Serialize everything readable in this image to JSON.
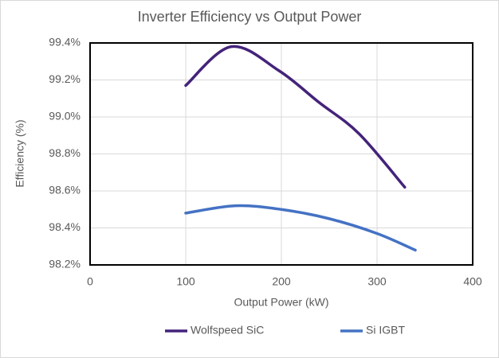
{
  "chart_data": {
    "type": "line",
    "title": "Inverter Efficiency vs Output Power",
    "x_label": "Output Power (kW)",
    "y_label": "Efficiency (%)",
    "series": [
      {
        "name": "Wolfspeed SiC",
        "color": "#44237a",
        "x": [
          100,
          147.5,
          197.5,
          239,
          281,
          329
        ],
        "values": [
          99.17,
          99.38,
          99.25,
          99.08,
          98.91,
          98.62
        ]
      },
      {
        "name": "Si IGBT",
        "color": "#4472c4",
        "x": [
          100,
          152,
          200,
          250,
          300,
          340
        ],
        "values": [
          98.48,
          98.52,
          98.5,
          98.45,
          98.37,
          98.28
        ]
      }
    ],
    "xlim": [
      0,
      400
    ],
    "xticks": [
      0,
      100,
      200,
      300,
      400
    ],
    "ylim": [
      98.2,
      99.4
    ],
    "yticks": [
      {
        "value": 98.2,
        "label": "98.2%"
      },
      {
        "value": 98.4,
        "label": "98.4%"
      },
      {
        "value": 98.6,
        "label": "98.6%"
      },
      {
        "value": 98.8,
        "label": "98.8%"
      },
      {
        "value": 99.0,
        "label": "99.0%"
      },
      {
        "value": 99.2,
        "label": "99.2%"
      },
      {
        "value": 99.4,
        "label": "99.4%"
      }
    ],
    "grid": true,
    "legend": "bottom"
  }
}
